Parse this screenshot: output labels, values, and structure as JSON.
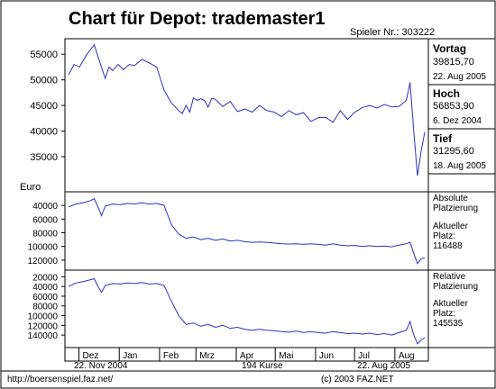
{
  "header": {
    "title": "Chart für Depot:  trademaster1",
    "spieler": "Spieler Nr.: 303222"
  },
  "sidebar": {
    "vortag_label": "Vortag",
    "vortag_value": "39815,70",
    "vortag_date": "22. Aug 2005",
    "hoch_label": "Hoch",
    "hoch_value": "56853,90",
    "hoch_date": "6. Dez 2004",
    "tief_label": "Tief",
    "tief_value": "31295,60",
    "tief_date": "18. Aug 2005",
    "abs_label1": "Absolute",
    "abs_label2": "Platzierung",
    "abs_cur1": "Aktueller",
    "abs_cur2": "Platz:",
    "abs_cur_value": "116488",
    "rel_label1": "Relative",
    "rel_label2": "Platzierung",
    "rel_cur1": "Aktueller",
    "rel_cur2": "Platz:",
    "rel_cur_value": "145535"
  },
  "footer": {
    "start_date": "22. Nov 2004",
    "count": "194 Kurse",
    "end_date": "22. Aug 2005",
    "url": "http://boersenspiel.faz.net/",
    "copyright": "(c) 2003 FAZ.NET"
  },
  "colors": {
    "line": "#3030c0",
    "frame": "#000000"
  },
  "chart_data": [
    {
      "type": "line",
      "ylabel": "Euro",
      "yticks": [
        35000,
        40000,
        45000,
        50000,
        55000
      ],
      "ytick_labels": [
        "35000",
        "40000",
        "45000",
        "50000",
        "55000"
      ],
      "ylim": [
        28500,
        57500
      ],
      "x": [
        0,
        3,
        6,
        10,
        14,
        17,
        20,
        22,
        24,
        27,
        30,
        33,
        36,
        40,
        44,
        48,
        52,
        56,
        60,
        62,
        64,
        66,
        68,
        70,
        72,
        74,
        76,
        78,
        80,
        84,
        88,
        92,
        96,
        100,
        104,
        108,
        112,
        116,
        120,
        124,
        128,
        132,
        136,
        140,
        144,
        148,
        152,
        156,
        160,
        164,
        168,
        172,
        176,
        180,
        184,
        186,
        188,
        190,
        192,
        194
      ],
      "y": [
        51000,
        53000,
        52500,
        55000,
        56853,
        53500,
        50300,
        52500,
        51800,
        53000,
        52000,
        53000,
        52800,
        54000,
        53300,
        52500,
        48000,
        45500,
        44000,
        43400,
        45000,
        43700,
        46500,
        46000,
        46300,
        46000,
        44700,
        46400,
        46200,
        44800,
        45800,
        43800,
        44300,
        43700,
        45000,
        44000,
        43700,
        42800,
        44000,
        43200,
        43600,
        41900,
        42600,
        42700,
        41700,
        44000,
        42300,
        43700,
        44600,
        45000,
        44500,
        45200,
        44700,
        44800,
        46000,
        49500,
        40000,
        31295,
        36000,
        39815
      ],
      "series": [
        {
          "name": "Depot"
        }
      ]
    },
    {
      "type": "line",
      "title": "Absolute Platzierung",
      "yticks": [
        40000,
        60000,
        80000,
        100000,
        120000
      ],
      "ytick_labels": [
        "40000",
        "60000",
        "80000",
        "100000",
        "120000"
      ],
      "ylim": [
        24000,
        132000
      ],
      "reversed": true,
      "x": [
        0,
        4,
        8,
        12,
        14,
        16,
        18,
        20,
        24,
        28,
        32,
        36,
        40,
        44,
        48,
        52,
        56,
        60,
        64,
        68,
        72,
        76,
        80,
        84,
        88,
        92,
        96,
        100,
        104,
        108,
        112,
        116,
        120,
        124,
        128,
        132,
        136,
        140,
        144,
        148,
        152,
        156,
        160,
        164,
        168,
        172,
        176,
        180,
        184,
        186,
        188,
        190,
        192,
        194
      ],
      "y": [
        42000,
        38000,
        36000,
        33000,
        30000,
        42000,
        55000,
        41000,
        38000,
        39000,
        37000,
        38000,
        36000,
        38000,
        37000,
        40000,
        68000,
        82000,
        88000,
        86000,
        90000,
        88000,
        91000,
        89000,
        92000,
        91000,
        93000,
        94000,
        93500,
        94000,
        95000,
        96000,
        96500,
        96000,
        97000,
        96000,
        97000,
        98000,
        96000,
        98000,
        99000,
        98500,
        100000,
        99000,
        100000,
        99500,
        100500,
        98000,
        96000,
        94000,
        110000,
        125000,
        118000,
        116488
      ]
    },
    {
      "type": "line",
      "title": "Relative Platzierung",
      "yticks": [
        20000,
        40000,
        60000,
        80000,
        100000,
        120000,
        140000
      ],
      "ytick_labels": [
        "20000",
        "40000",
        "60000",
        "80000",
        "100000",
        "120000",
        "140000"
      ],
      "ylim": [
        12000,
        162000
      ],
      "reversed": true,
      "x": [
        0,
        4,
        8,
        12,
        14,
        16,
        18,
        20,
        24,
        28,
        32,
        36,
        40,
        44,
        48,
        52,
        56,
        60,
        64,
        68,
        72,
        76,
        80,
        84,
        88,
        92,
        96,
        100,
        104,
        108,
        112,
        116,
        120,
        124,
        128,
        132,
        136,
        140,
        144,
        148,
        152,
        156,
        160,
        164,
        168,
        172,
        176,
        180,
        184,
        186,
        188,
        190,
        192,
        194
      ],
      "y": [
        40000,
        33000,
        30000,
        26000,
        24000,
        40000,
        52000,
        38000,
        34000,
        35000,
        33000,
        34000,
        32000,
        35000,
        34000,
        38000,
        70000,
        100000,
        118000,
        115000,
        122000,
        118000,
        124000,
        120000,
        126000,
        124000,
        128000,
        130000,
        128000,
        130000,
        131000,
        133000,
        134000,
        132000,
        135000,
        133000,
        135000,
        136000,
        133000,
        135000,
        137000,
        136000,
        138000,
        136000,
        139000,
        137000,
        140000,
        135000,
        130000,
        112000,
        140000,
        158000,
        150000,
        145535
      ]
    }
  ],
  "xaxis": {
    "x_count": 194,
    "month_labels": [
      "Dez",
      "Jan",
      "Feb",
      "Mrz",
      "Apr",
      "Mai",
      "Jun",
      "Jul",
      "Aug"
    ],
    "month_starts": [
      8,
      39,
      70,
      98,
      129,
      159,
      190,
      220,
      251
    ],
    "month_total_days": 274
  }
}
